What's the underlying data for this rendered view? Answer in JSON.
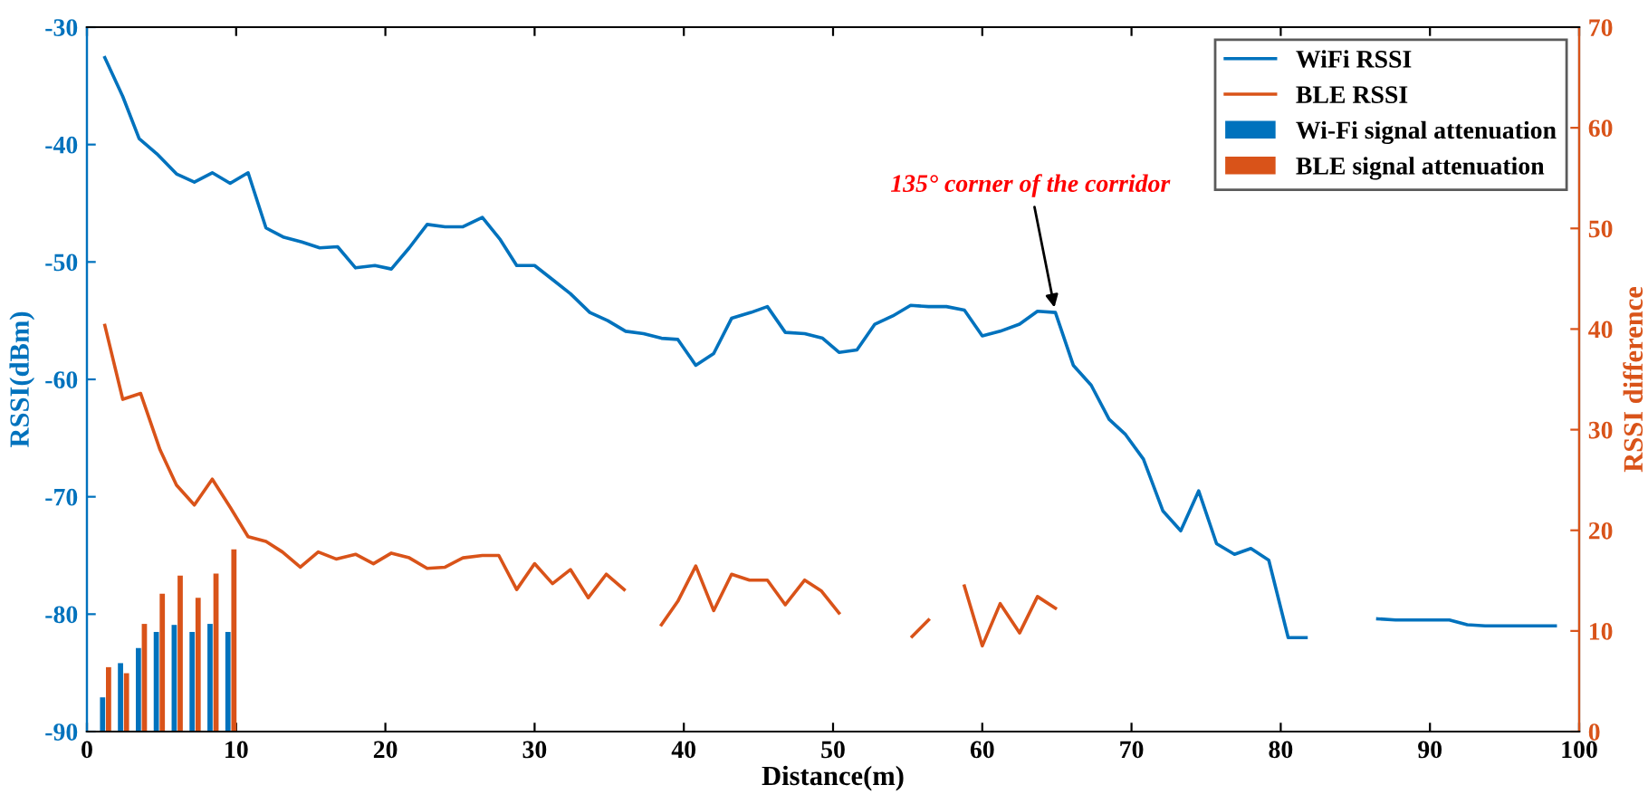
{
  "chart_data": {
    "type": "line",
    "xlabel": "Distance(m)",
    "ylabel": "RSSI(dBm)",
    "y2label": "RSSI difference",
    "xlim": [
      0,
      100
    ],
    "xticks": [
      0,
      10,
      20,
      30,
      40,
      50,
      60,
      70,
      80,
      90,
      100
    ],
    "ylim": [
      -90,
      -30
    ],
    "yticks": [
      -90,
      -80,
      -70,
      -60,
      -50,
      -40,
      -30
    ],
    "y2lim": [
      0,
      70
    ],
    "y2ticks": [
      0,
      10,
      20,
      30,
      40,
      50,
      60,
      70
    ],
    "grid": false,
    "legend": "top right",
    "marker": "none",
    "line_style": "solid",
    "annotations": [
      {
        "text": "135° corner of the corridor",
        "x": 64.9,
        "y": -54.3
      }
    ],
    "series": [
      {
        "name": "WiFi RSSI",
        "color": "#0072bd",
        "x": [
          1.2,
          2.4,
          3.5,
          4.7,
          6.0,
          7.2,
          8.4,
          9.6,
          10.8,
          12.0,
          13.2,
          14.4,
          15.6,
          16.8,
          18.0,
          19.3,
          20.4,
          21.6,
          22.8,
          24.0,
          25.2,
          26.5,
          27.7,
          28.8,
          30.0,
          31.2,
          32.4,
          33.7,
          34.9,
          36.1,
          37.3,
          38.5,
          39.6,
          40.8,
          42.0,
          43.2,
          44.5,
          45.6,
          46.8,
          48.1,
          49.3,
          50.4,
          51.6,
          52.8,
          54.0,
          55.2,
          56.4,
          57.6,
          58.8,
          60.0,
          61.2,
          62.5,
          63.7,
          64.9,
          66.1,
          67.3,
          68.5,
          69.6,
          70.8,
          72.1,
          73.3,
          74.5,
          75.7,
          76.9,
          78.0,
          79.2,
          80.5,
          81.7,
          84.0,
          86.5,
          87.7,
          91.3,
          92.5,
          93.7,
          98.4
        ],
        "values": [
          -32.6,
          -35.9,
          -39.5,
          -40.8,
          -42.5,
          -43.2,
          -42.4,
          -43.3,
          -42.4,
          -47.1,
          -47.9,
          -48.3,
          -48.8,
          -48.7,
          -50.5,
          -50.3,
          -50.6,
          -48.8,
          -46.8,
          -47.0,
          -47.0,
          -46.2,
          -48.1,
          -50.3,
          -50.3,
          -51.5,
          -52.7,
          -54.3,
          -55.0,
          -55.9,
          -56.1,
          -56.5,
          -56.6,
          -58.8,
          -57.8,
          -54.8,
          -54.3,
          -53.8,
          -56.0,
          -56.1,
          -56.5,
          -57.7,
          -57.5,
          -55.3,
          -54.6,
          -53.7,
          -53.8,
          -53.8,
          -54.1,
          -56.3,
          -55.9,
          -55.3,
          -54.2,
          -54.3,
          -58.8,
          -60.5,
          -63.4,
          -64.7,
          -66.8,
          -71.2,
          -72.9,
          -69.5,
          -74.0,
          -74.9,
          -74.4,
          -75.4,
          -82.0,
          -82.0,
          null,
          -80.4,
          -80.5,
          -80.5,
          -80.9,
          -81.0,
          -81.0
        ]
      },
      {
        "name": "BLE RSSI",
        "color": "#d95319",
        "x": [
          1.2,
          2.4,
          3.6,
          4.9,
          6.0,
          7.2,
          8.4,
          9.6,
          10.8,
          12.0,
          13.1,
          14.3,
          15.5,
          16.7,
          18.0,
          19.2,
          20.4,
          21.6,
          22.8,
          24.0,
          25.2,
          26.5,
          27.6,
          28.8,
          30.0,
          31.2,
          32.4,
          33.6,
          34.8,
          36.0,
          37.2,
          38.5,
          39.6,
          40.8,
          42.0,
          43.2,
          44.4,
          45.6,
          46.8,
          48.1,
          49.2,
          50.4,
          53.0,
          55.3,
          56.4,
          57.6,
          58.8,
          60.0,
          61.2,
          62.5,
          63.7,
          64.9
        ],
        "values": [
          -55.4,
          -61.7,
          -61.2,
          -66.0,
          -69.0,
          -70.7,
          -68.5,
          -70.9,
          -73.4,
          -73.8,
          -74.7,
          -76.0,
          -74.7,
          -75.3,
          -74.9,
          -75.7,
          -74.8,
          -75.2,
          -76.1,
          -76.0,
          -75.2,
          -75.0,
          -75.0,
          -77.9,
          -75.7,
          -77.4,
          -76.2,
          -78.6,
          -76.6,
          -77.9,
          null,
          -80.9,
          -78.9,
          -75.9,
          -79.7,
          -76.6,
          -77.1,
          -77.1,
          -79.2,
          -77.1,
          -78.0,
          -79.9,
          null,
          -81.9,
          -80.5,
          null,
          -77.6,
          -82.7,
          -79.1,
          -81.6,
          -78.5,
          -79.5
        ]
      },
      {
        "name": "Wi-Fi signal attenuation",
        "type": "bar",
        "axis": "y2",
        "color": "#0072bd",
        "x": [
          1.05,
          2.25,
          3.45,
          4.65,
          5.85,
          7.05,
          8.25,
          9.45
        ],
        "values": [
          3.4,
          6.8,
          8.3,
          9.9,
          10.6,
          9.9,
          10.7,
          9.9
        ]
      },
      {
        "name": "BLE signal attenuation",
        "type": "bar",
        "axis": "y2",
        "color": "#d95319",
        "x": [
          1.45,
          2.65,
          3.85,
          5.05,
          6.25,
          7.45,
          8.65,
          9.85
        ],
        "values": [
          6.4,
          5.8,
          10.7,
          13.7,
          15.5,
          13.3,
          15.7,
          18.1
        ]
      }
    ]
  }
}
